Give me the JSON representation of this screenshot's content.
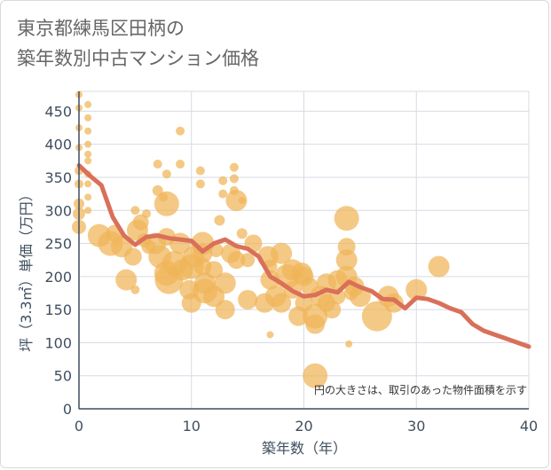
{
  "title_lines": [
    "東京都練馬区田柄の",
    "築年数別中古マンション価格"
  ],
  "chart_data": {
    "type": "scatter",
    "xlabel": "築年数（年）",
    "ylabel": "坪（3.3㎡）単価（万円）",
    "xlim": [
      0,
      40
    ],
    "ylim": [
      0,
      480
    ],
    "x_ticks": [
      0,
      10,
      20,
      30,
      40
    ],
    "y_ticks": [
      0,
      50,
      100,
      150,
      200,
      250,
      300,
      350,
      400,
      450
    ],
    "grid": true,
    "annotation": "円の大きさは、取引のあった物件面積を示す",
    "colors": {
      "bubble": "#f0b457",
      "line": "#d9705a",
      "grid": "#d5dbe3",
      "axis": "#3f4f5f"
    },
    "line_series": {
      "x": [
        0,
        1,
        2,
        3,
        4,
        5,
        6,
        7,
        8,
        9,
        10,
        11,
        12,
        13,
        14,
        15,
        16,
        17,
        18,
        19,
        20,
        21,
        22,
        23,
        24,
        25,
        26,
        27,
        28,
        29,
        30,
        31,
        32,
        33,
        34,
        35,
        36,
        37,
        38,
        39,
        40
      ],
      "y": [
        368,
        352,
        338,
        290,
        262,
        248,
        260,
        262,
        258,
        256,
        254,
        238,
        250,
        256,
        246,
        242,
        230,
        200,
        190,
        178,
        170,
        172,
        180,
        176,
        192,
        184,
        178,
        166,
        165,
        152,
        168,
        166,
        160,
        152,
        146,
        128,
        118,
        112,
        106,
        100,
        94
      ]
    },
    "bubbles": [
      {
        "x": 0,
        "y": 475,
        "s": 4
      },
      {
        "x": 0,
        "y": 455,
        "s": 4
      },
      {
        "x": 0,
        "y": 425,
        "s": 4
      },
      {
        "x": 0,
        "y": 395,
        "s": 4
      },
      {
        "x": 0,
        "y": 360,
        "s": 5
      },
      {
        "x": 0,
        "y": 340,
        "s": 5
      },
      {
        "x": 0,
        "y": 310,
        "s": 6
      },
      {
        "x": 0,
        "y": 295,
        "s": 7
      },
      {
        "x": 0,
        "y": 275,
        "s": 8
      },
      {
        "x": 0.8,
        "y": 460,
        "s": 4
      },
      {
        "x": 0.8,
        "y": 440,
        "s": 4
      },
      {
        "x": 0.8,
        "y": 420,
        "s": 4
      },
      {
        "x": 0.8,
        "y": 400,
        "s": 4
      },
      {
        "x": 0.8,
        "y": 385,
        "s": 4
      },
      {
        "x": 0.8,
        "y": 375,
        "s": 4
      },
      {
        "x": 0.8,
        "y": 355,
        "s": 4
      },
      {
        "x": 0.8,
        "y": 340,
        "s": 4
      },
      {
        "x": 0.8,
        "y": 320,
        "s": 4
      },
      {
        "x": 0.8,
        "y": 300,
        "s": 4
      },
      {
        "x": 1.8,
        "y": 262,
        "s": 13
      },
      {
        "x": 2.8,
        "y": 250,
        "s": 14
      },
      {
        "x": 3.2,
        "y": 265,
        "s": 10
      },
      {
        "x": 3.8,
        "y": 245,
        "s": 12
      },
      {
        "x": 4.2,
        "y": 195,
        "s": 12
      },
      {
        "x": 4.8,
        "y": 230,
        "s": 10
      },
      {
        "x": 5,
        "y": 300,
        "s": 5
      },
      {
        "x": 5,
        "y": 180,
        "s": 5
      },
      {
        "x": 5.2,
        "y": 270,
        "s": 12
      },
      {
        "x": 5.5,
        "y": 282,
        "s": 9
      },
      {
        "x": 5.8,
        "y": 255,
        "s": 8
      },
      {
        "x": 6,
        "y": 295,
        "s": 5
      },
      {
        "x": 6.2,
        "y": 245,
        "s": 8
      },
      {
        "x": 6.8,
        "y": 250,
        "s": 12
      },
      {
        "x": 7,
        "y": 370,
        "s": 5
      },
      {
        "x": 7,
        "y": 330,
        "s": 6
      },
      {
        "x": 7.2,
        "y": 230,
        "s": 13
      },
      {
        "x": 7.5,
        "y": 320,
        "s": 5
      },
      {
        "x": 7.8,
        "y": 355,
        "s": 5
      },
      {
        "x": 7.8,
        "y": 310,
        "s": 14
      },
      {
        "x": 7.8,
        "y": 260,
        "s": 10
      },
      {
        "x": 7.8,
        "y": 205,
        "s": 14
      },
      {
        "x": 8,
        "y": 195,
        "s": 16
      },
      {
        "x": 8.5,
        "y": 220,
        "s": 14
      },
      {
        "x": 9,
        "y": 420,
        "s": 5
      },
      {
        "x": 9,
        "y": 370,
        "s": 5
      },
      {
        "x": 9,
        "y": 250,
        "s": 12
      },
      {
        "x": 9.2,
        "y": 210,
        "s": 12
      },
      {
        "x": 9.8,
        "y": 180,
        "s": 11
      },
      {
        "x": 10,
        "y": 160,
        "s": 11
      },
      {
        "x": 10,
        "y": 215,
        "s": 14
      },
      {
        "x": 10.2,
        "y": 230,
        "s": 12
      },
      {
        "x": 10.8,
        "y": 360,
        "s": 5
      },
      {
        "x": 10.8,
        "y": 340,
        "s": 5
      },
      {
        "x": 11,
        "y": 250,
        "s": 13
      },
      {
        "x": 11,
        "y": 235,
        "s": 11
      },
      {
        "x": 11,
        "y": 215,
        "s": 10
      },
      {
        "x": 11.2,
        "y": 190,
        "s": 12
      },
      {
        "x": 11.2,
        "y": 178,
        "s": 14
      },
      {
        "x": 12,
        "y": 170,
        "s": 12
      },
      {
        "x": 12,
        "y": 210,
        "s": 10
      },
      {
        "x": 12.2,
        "y": 240,
        "s": 8
      },
      {
        "x": 12.5,
        "y": 285,
        "s": 6
      },
      {
        "x": 12.8,
        "y": 345,
        "s": 5
      },
      {
        "x": 12.8,
        "y": 325,
        "s": 5
      },
      {
        "x": 13,
        "y": 190,
        "s": 12
      },
      {
        "x": 13,
        "y": 150,
        "s": 11
      },
      {
        "x": 13.5,
        "y": 235,
        "s": 11
      },
      {
        "x": 13.8,
        "y": 365,
        "s": 5
      },
      {
        "x": 13.8,
        "y": 348,
        "s": 5
      },
      {
        "x": 13.8,
        "y": 330,
        "s": 5
      },
      {
        "x": 14,
        "y": 315,
        "s": 12
      },
      {
        "x": 14,
        "y": 225,
        "s": 10
      },
      {
        "x": 14.5,
        "y": 265,
        "s": 6
      },
      {
        "x": 14.5,
        "y": 315,
        "s": 4
      },
      {
        "x": 15,
        "y": 225,
        "s": 8
      },
      {
        "x": 15,
        "y": 165,
        "s": 11
      },
      {
        "x": 15.5,
        "y": 250,
        "s": 10
      },
      {
        "x": 16.5,
        "y": 160,
        "s": 11
      },
      {
        "x": 16.8,
        "y": 230,
        "s": 12
      },
      {
        "x": 17,
        "y": 215,
        "s": 8
      },
      {
        "x": 17,
        "y": 195,
        "s": 11
      },
      {
        "x": 17,
        "y": 112,
        "s": 4
      },
      {
        "x": 17.5,
        "y": 170,
        "s": 12
      },
      {
        "x": 18,
        "y": 235,
        "s": 12
      },
      {
        "x": 18,
        "y": 160,
        "s": 11
      },
      {
        "x": 18.5,
        "y": 200,
        "s": 14
      },
      {
        "x": 19,
        "y": 210,
        "s": 12
      },
      {
        "x": 19,
        "y": 180,
        "s": 10
      },
      {
        "x": 19.5,
        "y": 140,
        "s": 11
      },
      {
        "x": 19.8,
        "y": 205,
        "s": 12
      },
      {
        "x": 20,
        "y": 200,
        "s": 11
      },
      {
        "x": 20,
        "y": 160,
        "s": 10
      },
      {
        "x": 20.5,
        "y": 185,
        "s": 10
      },
      {
        "x": 21,
        "y": 140,
        "s": 14
      },
      {
        "x": 21,
        "y": 128,
        "s": 11
      },
      {
        "x": 21,
        "y": 50,
        "s": 14
      },
      {
        "x": 21.5,
        "y": 170,
        "s": 12
      },
      {
        "x": 22,
        "y": 160,
        "s": 10
      },
      {
        "x": 22,
        "y": 190,
        "s": 11
      },
      {
        "x": 22.5,
        "y": 150,
        "s": 10
      },
      {
        "x": 23,
        "y": 170,
        "s": 9
      },
      {
        "x": 23,
        "y": 195,
        "s": 11
      },
      {
        "x": 23.8,
        "y": 288,
        "s": 14
      },
      {
        "x": 23.8,
        "y": 245,
        "s": 10
      },
      {
        "x": 23.8,
        "y": 225,
        "s": 12
      },
      {
        "x": 23.8,
        "y": 200,
        "s": 12
      },
      {
        "x": 24,
        "y": 98,
        "s": 4
      },
      {
        "x": 24.2,
        "y": 175,
        "s": 8
      },
      {
        "x": 24.5,
        "y": 185,
        "s": 11
      },
      {
        "x": 25,
        "y": 170,
        "s": 12
      },
      {
        "x": 26.5,
        "y": 140,
        "s": 17
      },
      {
        "x": 27.5,
        "y": 170,
        "s": 12
      },
      {
        "x": 28,
        "y": 160,
        "s": 11
      },
      {
        "x": 30,
        "y": 180,
        "s": 12
      },
      {
        "x": 32,
        "y": 215,
        "s": 12
      }
    ]
  }
}
